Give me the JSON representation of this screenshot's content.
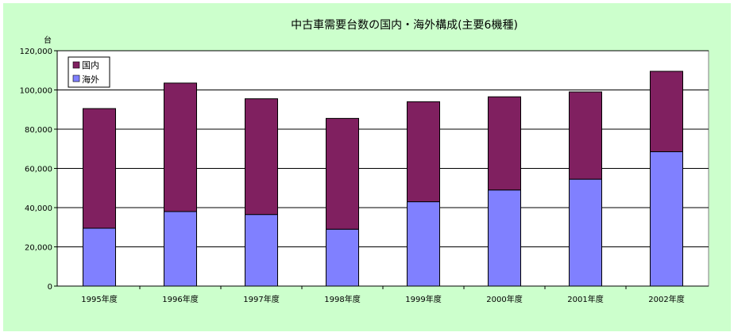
{
  "chart_data": {
    "type": "bar",
    "stacked": true,
    "title": "中古車需要台数の国内・海外構成(主要6機種)",
    "unit_label": "台",
    "categories": [
      "1995年度",
      "1996年度",
      "1997年度",
      "1998年度",
      "1999年度",
      "2000年度",
      "2001年度",
      "2002年度"
    ],
    "series": [
      {
        "name": "海外",
        "color": "#8080ff",
        "values": [
          29500,
          38000,
          36500,
          29000,
          43000,
          49000,
          54500,
          68500
        ]
      },
      {
        "name": "国内",
        "color": "#802060",
        "values": [
          61000,
          65500,
          59000,
          56500,
          51000,
          47500,
          44500,
          41000
        ]
      }
    ],
    "legend_order": [
      "国内",
      "海外"
    ],
    "legend_position": "top-left",
    "ylim": [
      0,
      120000
    ],
    "yticks": [
      0,
      20000,
      40000,
      60000,
      80000,
      100000,
      120000
    ],
    "ytick_labels": [
      "0",
      "20,000",
      "40,000",
      "60,000",
      "80,000",
      "100,000",
      "120,000"
    ],
    "grid": true,
    "colors": {
      "background": "#ccffcc",
      "plot_background": "#ffffff",
      "gridline": "#000000"
    }
  }
}
